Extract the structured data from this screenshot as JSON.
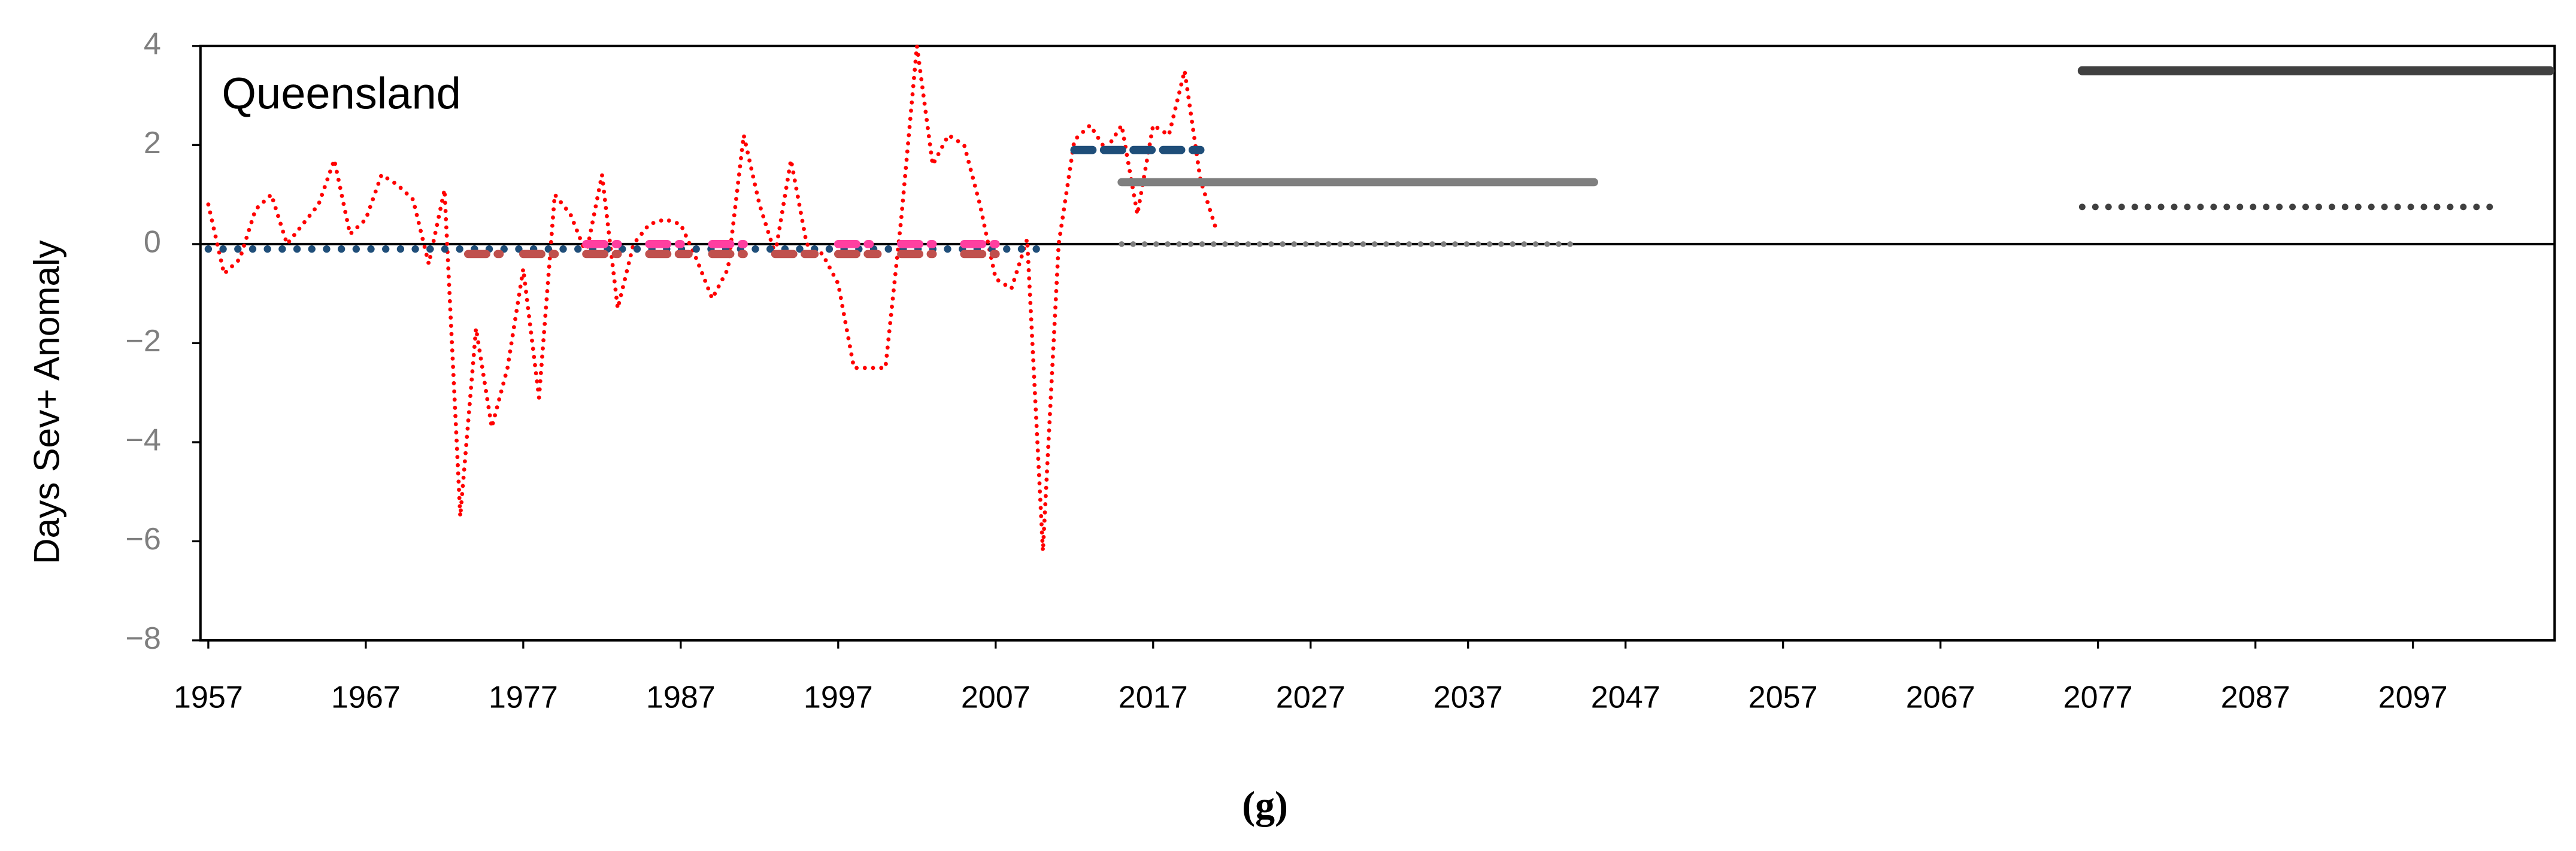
{
  "chart_data": {
    "type": "line",
    "annotation": "Queensland",
    "y_label": "Days Sev+ Anomaly",
    "caption": "(g)",
    "xlim": [
      1956.5,
      2106
    ],
    "xticks": [
      1957,
      1967,
      1977,
      1987,
      1997,
      2007,
      2017,
      2027,
      2037,
      2047,
      2057,
      2067,
      2077,
      2087,
      2097
    ],
    "ylim": [
      -8,
      4
    ],
    "yticks": [
      {
        "value": -8,
        "label": "−8"
      },
      {
        "value": -6,
        "label": "−6"
      },
      {
        "value": -4,
        "label": "−4"
      },
      {
        "value": -2,
        "label": "−2"
      },
      0,
      2,
      4
    ],
    "zero_line": true,
    "series": [
      {
        "color": "#ff0000",
        "dash": "dotted",
        "width": 2.5,
        "x": [
          1957,
          1958,
          1959,
          1960,
          1961,
          1962,
          1963,
          1964,
          1965,
          1966,
          1967,
          1968,
          1969,
          1970,
          1971,
          1972,
          1973,
          1974,
          1975,
          1976,
          1977,
          1978,
          1979,
          1980,
          1981,
          1982,
          1983,
          1984,
          1985,
          1986,
          1987,
          1988,
          1989,
          1990,
          1991,
          1992,
          1993,
          1994,
          1995,
          1996,
          1997,
          1998,
          1999,
          2000,
          2001,
          2002,
          2003,
          2004,
          2005,
          2006,
          2007,
          2008,
          2009,
          2010,
          2011,
          2012,
          2013,
          2014,
          2015,
          2016,
          2017,
          2018,
          2019,
          2020,
          2021
        ],
        "values": [
          0.8,
          -0.6,
          -0.3,
          0.7,
          1.0,
          0.0,
          0.4,
          0.8,
          1.7,
          0.2,
          0.5,
          1.4,
          1.2,
          0.9,
          -0.4,
          1.1,
          -5.5,
          -1.7,
          -3.7,
          -2.5,
          -0.5,
          -3.1,
          1.0,
          0.6,
          -0.2,
          1.4,
          -1.3,
          0.0,
          0.4,
          0.5,
          0.4,
          -0.3,
          -1.1,
          -0.5,
          2.2,
          0.8,
          -0.2,
          1.7,
          0.0,
          -0.2,
          -0.8,
          -2.5,
          -2.5,
          -2.5,
          0.5,
          4.0,
          1.6,
          2.2,
          2.0,
          0.8,
          -0.7,
          -0.9,
          0.1,
          -6.2,
          0.0,
          2.1,
          2.4,
          1.9,
          2.4,
          0.6,
          2.4,
          2.2,
          3.5,
          1.3,
          0.3
        ]
      },
      {
        "color": "#1f4e79",
        "dash": "dotted",
        "width": 4.5,
        "x": [
          1957,
          2010
        ],
        "values": [
          -0.1,
          -0.1
        ]
      },
      {
        "color": "#c0504d",
        "dash": "dashed",
        "width": 5,
        "x": [
          1973.5,
          1975.5,
          null,
          1977,
          1979,
          null,
          1981,
          1983,
          null,
          1985,
          1987.5,
          null,
          1989,
          1991,
          null,
          1993,
          1995.5,
          null,
          1997,
          1999.5,
          null,
          2001,
          2003,
          null,
          2005,
          2007
        ],
        "values": [
          -0.2,
          -0.2,
          null,
          -0.2,
          -0.2,
          null,
          -0.2,
          -0.2,
          null,
          -0.2,
          -0.2,
          null,
          -0.2,
          -0.2,
          null,
          -0.2,
          -0.2,
          null,
          -0.2,
          -0.2,
          null,
          -0.2,
          -0.2,
          null,
          -0.2,
          -0.2
        ]
      },
      {
        "color": "#ff3fa0",
        "dash": "dashed",
        "width": 5,
        "x": [
          1981,
          1983,
          null,
          1985,
          1987,
          null,
          1989,
          1991,
          null,
          1997,
          1999,
          null,
          2001,
          2003,
          null,
          2005,
          2007
        ],
        "values": [
          0,
          0,
          null,
          0,
          0,
          null,
          0,
          0,
          null,
          0,
          0,
          null,
          0,
          0,
          null,
          0,
          0
        ]
      },
      {
        "color": "#1f4e79",
        "dash": "dashed",
        "width": 5,
        "x": [
          2012,
          2020
        ],
        "values": [
          1.9,
          1.9
        ]
      },
      {
        "color": "#7f7f7f",
        "dash": "solid",
        "width": 5,
        "x": [
          2015,
          2045
        ],
        "values": [
          1.25,
          1.25
        ]
      },
      {
        "color": "#7f7f7f",
        "dash": "dotted",
        "width": 3.5,
        "x": [
          2015,
          2044
        ],
        "values": [
          0,
          0
        ]
      },
      {
        "color": "#404040",
        "dash": "solid",
        "width": 5.5,
        "x": [
          2076,
          2105.7
        ],
        "values": [
          3.5,
          3.5
        ]
      },
      {
        "color": "#404040",
        "dash": "dotted",
        "width": 4,
        "x": [
          2076,
          2102
        ],
        "values": [
          0.75,
          0.75
        ]
      }
    ]
  }
}
